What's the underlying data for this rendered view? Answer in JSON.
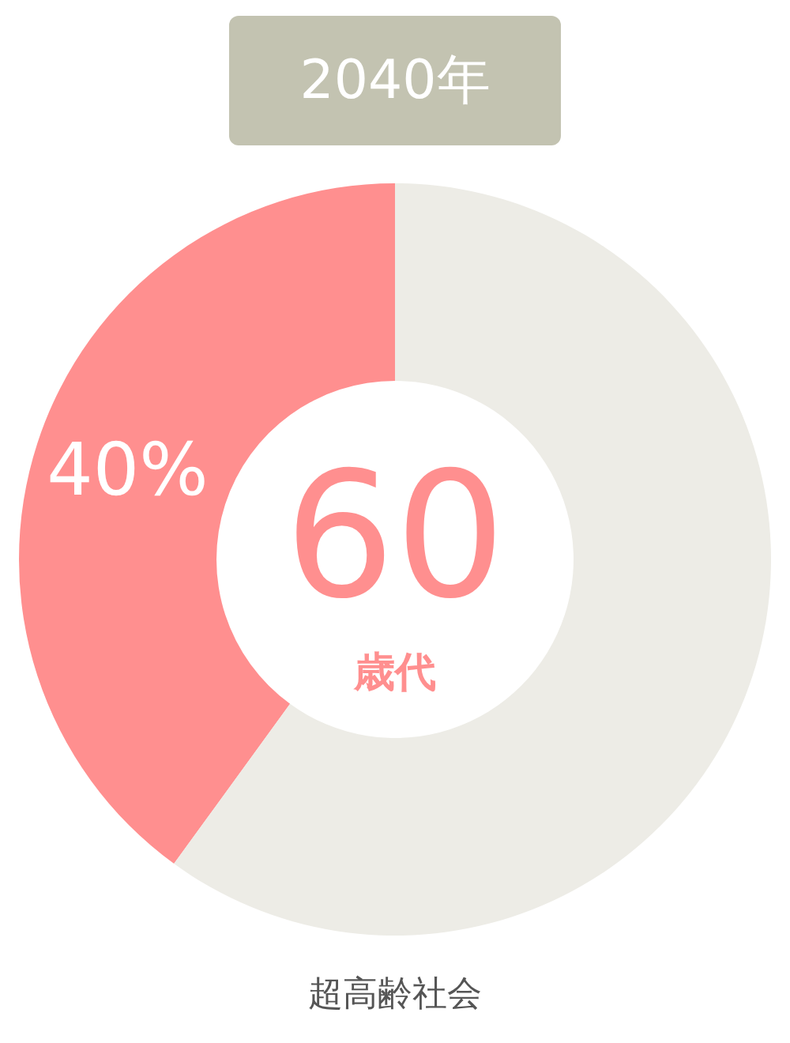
{
  "chart_data": {
    "type": "donut",
    "title": "2040年",
    "categories": [
      null,
      null
    ],
    "values": [
      40,
      60
    ],
    "colors": [
      "#ff8f8f",
      "#edece6"
    ],
    "value_labels": [
      "40%",
      null
    ],
    "annotations": [
      "60",
      "歳代",
      "超高齢社会"
    ]
  }
}
